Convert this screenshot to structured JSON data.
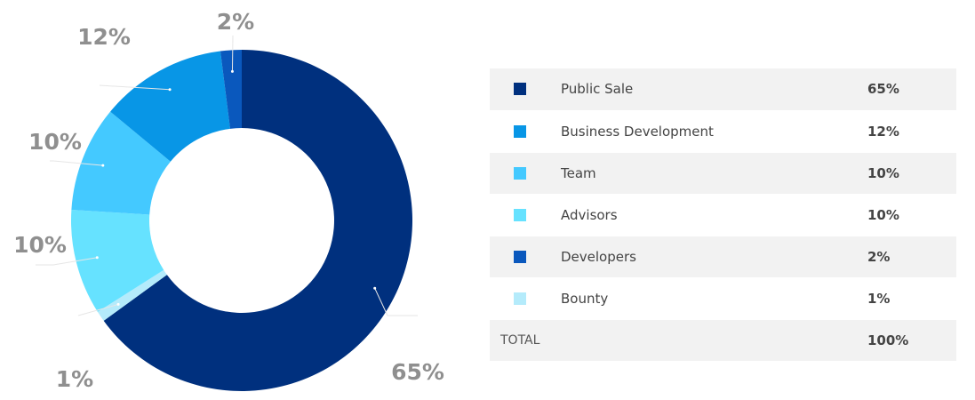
{
  "chart_data": {
    "type": "pie",
    "style": "donut",
    "title": "",
    "slices": [
      {
        "label": "Public Sale",
        "value": 65,
        "display": "65%",
        "color": "#00307e"
      },
      {
        "label": "Bounty",
        "value": 1,
        "display": "1%",
        "color": "#b4ebfb"
      },
      {
        "label": "Advisors",
        "value": 10,
        "display": "10%",
        "color": "#66e2ff"
      },
      {
        "label": "Team",
        "value": 10,
        "display": "10%",
        "color": "#44c9ff"
      },
      {
        "label": "Business Development",
        "value": 12,
        "display": "12%",
        "color": "#0896e6"
      },
      {
        "label": "Developers",
        "value": 2,
        "display": "2%",
        "color": "#0a58bd"
      }
    ]
  },
  "legend": {
    "rows": [
      {
        "name": "Public Sale",
        "value": "65%",
        "color": "#00307e"
      },
      {
        "name": "Business Development",
        "value": "12%",
        "color": "#0896e6"
      },
      {
        "name": "Team",
        "value": "10%",
        "color": "#44c9ff"
      },
      {
        "name": "Advisors",
        "value": "10%",
        "color": "#66e2ff"
      },
      {
        "name": "Developers",
        "value": "2%",
        "color": "#0a58bd"
      },
      {
        "name": "Bounty",
        "value": "1%",
        "color": "#b4ebfb"
      }
    ],
    "total_label": "TOTAL",
    "total_value": "100%"
  }
}
